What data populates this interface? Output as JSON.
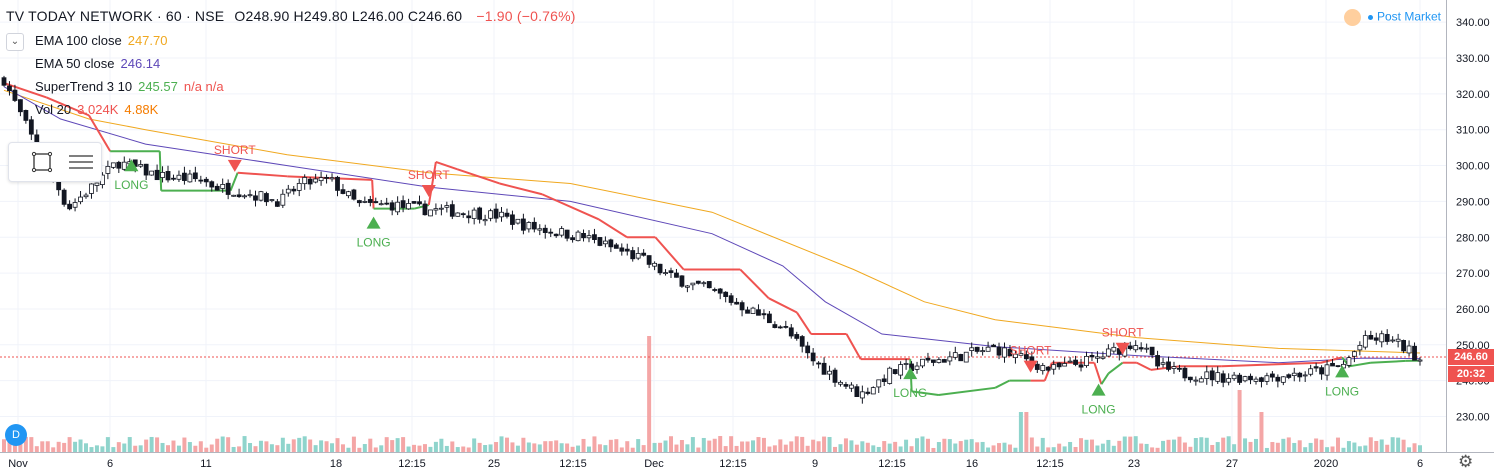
{
  "header": {
    "symbol": "TV TODAY NETWORK · 60 · NSE",
    "ohlc": [
      {
        "label": "O",
        "value": "248.90"
      },
      {
        "label": "H",
        "value": "249.80"
      },
      {
        "label": "L",
        "value": "246.00"
      },
      {
        "label": "C",
        "value": "246.60"
      }
    ],
    "change": "−1.90 (−0.76%)"
  },
  "indicators": [
    {
      "name": "EMA 100 close",
      "value": "247.70",
      "color": "#f0a81f"
    },
    {
      "name": "EMA 50 close",
      "value": "246.14",
      "color": "#5e48b8"
    },
    {
      "name": "SuperTrend 3 10",
      "value": "245.57",
      "extra": "n/a  n/a",
      "color": "#4caf50",
      "extra_color": "#ef5350"
    },
    {
      "name": "Vol 20",
      "value": "3.024K",
      "extra": "4.88K",
      "color": "#ef5350",
      "extra_color": "#f57c00"
    }
  ],
  "status": {
    "label": "Post Market"
  },
  "badges": {
    "last_price": "246.60",
    "countdown": "20:32",
    "last_color": "#ef5350",
    "countdown_color": "#ef5350"
  },
  "colors": {
    "up": "#26a69a",
    "down": "#ef5350",
    "candle": "#131722",
    "ema100": "#f0a81f",
    "ema50": "#5e48b8",
    "st_up": "#4caf50",
    "st_down": "#ef5350",
    "vol_up": "#8fd4cc",
    "vol_down": "#f4a6a6"
  },
  "chart_data": {
    "type": "candlestick",
    "ylim": [
      224,
      342
    ],
    "y_ticks": [
      230,
      240,
      250,
      260,
      270,
      280,
      290,
      300,
      310,
      320,
      330,
      340
    ],
    "y_tick_labels": [
      "230.00",
      "240.00",
      "250.00",
      "260.00",
      "270.00",
      "280.00",
      "290.00",
      "300.00",
      "310.00",
      "320.00",
      "330.00",
      "340.00"
    ],
    "x_labels": [
      "Nov",
      "6",
      "11",
      "18",
      "12:15",
      "25",
      "12:15",
      "Dec",
      "12:15",
      "9",
      "12:15",
      "16",
      "12:15",
      "23",
      "27",
      "2020",
      "6"
    ],
    "last_price": 246.6,
    "price_anchors": [
      [
        0,
        324
      ],
      [
        12,
        314
      ],
      [
        22,
        306
      ],
      [
        36,
        296
      ],
      [
        45,
        288
      ],
      [
        62,
        294
      ],
      [
        80,
        301
      ],
      [
        110,
        297
      ],
      [
        140,
        296
      ],
      [
        150,
        294
      ],
      [
        165,
        293
      ],
      [
        195,
        290
      ],
      [
        210,
        295
      ],
      [
        230,
        296
      ],
      [
        250,
        289
      ],
      [
        275,
        289
      ],
      [
        290,
        288
      ],
      [
        325,
        287
      ],
      [
        350,
        286
      ],
      [
        370,
        283
      ],
      [
        410,
        280
      ],
      [
        450,
        274
      ],
      [
        470,
        269
      ],
      [
        500,
        265
      ],
      [
        520,
        261
      ],
      [
        550,
        255
      ],
      [
        570,
        246
      ],
      [
        590,
        240
      ],
      [
        605,
        236
      ],
      [
        625,
        242
      ],
      [
        650,
        245
      ],
      [
        675,
        247
      ],
      [
        700,
        249
      ],
      [
        720,
        246
      ],
      [
        740,
        243
      ],
      [
        770,
        246
      ],
      [
        800,
        251
      ],
      [
        815,
        244
      ],
      [
        830,
        242
      ],
      [
        860,
        241
      ],
      [
        890,
        241
      ],
      [
        920,
        242
      ],
      [
        945,
        244
      ],
      [
        960,
        251
      ],
      [
        975,
        252
      ],
      [
        990,
        249
      ],
      [
        1000,
        246
      ]
    ],
    "series": [
      {
        "name": "EMA 100 close",
        "values": [
          [
            0,
            321
          ],
          [
            60,
            313
          ],
          [
            100,
            310
          ],
          [
            200,
            303
          ],
          [
            300,
            298
          ],
          [
            400,
            295
          ],
          [
            500,
            287
          ],
          [
            600,
            271
          ],
          [
            650,
            262
          ],
          [
            700,
            257
          ],
          [
            800,
            252
          ],
          [
            900,
            249
          ],
          [
            1000,
            247.7
          ]
        ]
      },
      {
        "name": "EMA 50 close",
        "values": [
          [
            0,
            322
          ],
          [
            40,
            313
          ],
          [
            100,
            306
          ],
          [
            200,
            300
          ],
          [
            300,
            294
          ],
          [
            400,
            290
          ],
          [
            500,
            281
          ],
          [
            550,
            272
          ],
          [
            580,
            262
          ],
          [
            620,
            253
          ],
          [
            700,
            249.5
          ],
          [
            800,
            247
          ],
          [
            900,
            245
          ],
          [
            960,
            246.3
          ],
          [
            1000,
            246.14
          ]
        ]
      },
      {
        "name": "SuperTrend 3 10",
        "values": [
          [
            0,
            323
          ],
          [
            30,
            319
          ],
          [
            60,
            314
          ],
          [
            75,
            304
          ],
          [
            110,
            304
          ],
          [
            111,
            293
          ],
          [
            160,
            293
          ],
          [
            165,
            298
          ],
          [
            200,
            297
          ],
          [
            260,
            296
          ],
          [
            261,
            288
          ],
          [
            290,
            288
          ],
          [
            300,
            289
          ],
          [
            305,
            301
          ],
          [
            320,
            299
          ],
          [
            350,
            295
          ],
          [
            380,
            292
          ],
          [
            420,
            285
          ],
          [
            440,
            280
          ],
          [
            460,
            280
          ],
          [
            480,
            271
          ],
          [
            520,
            271
          ],
          [
            540,
            263
          ],
          [
            560,
            259
          ],
          [
            570,
            253
          ],
          [
            595,
            253
          ],
          [
            605,
            246
          ],
          [
            625,
            246
          ],
          [
            640,
            246
          ],
          [
            641,
            237
          ],
          [
            660,
            236
          ],
          [
            700,
            238
          ],
          [
            710,
            240
          ],
          [
            725,
            240
          ],
          [
            735,
            240
          ],
          [
            740,
            245
          ],
          [
            770,
            245
          ],
          [
            775,
            239
          ],
          [
            780,
            242
          ],
          [
            790,
            245
          ],
          [
            800,
            245
          ],
          [
            810,
            243
          ],
          [
            830,
            244
          ],
          [
            860,
            244
          ],
          [
            930,
            245
          ],
          [
            945,
            246.5
          ],
          [
            950,
            244
          ],
          [
            965,
            245
          ],
          [
            990,
            245.5
          ],
          [
            1000,
            245.57
          ]
        ]
      }
    ],
    "signals": [
      {
        "type": "LONG",
        "x": 90
      },
      {
        "type": "LONG",
        "x": 261
      },
      {
        "type": "SHORT",
        "x": 163
      },
      {
        "type": "SHORT",
        "x": 300
      },
      {
        "type": "LONG",
        "x": 640
      },
      {
        "type": "SHORT",
        "x": 725
      },
      {
        "type": "LONG",
        "x": 773
      },
      {
        "type": "SHORT",
        "x": 790
      },
      {
        "type": "LONG",
        "x": 945
      }
    ]
  }
}
